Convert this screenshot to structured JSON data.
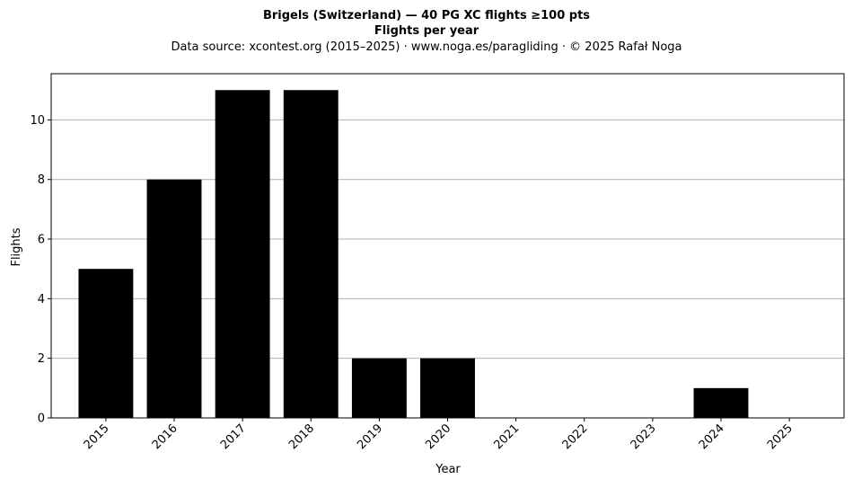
{
  "chart_data": {
    "type": "bar",
    "title": "Brigels (Switzerland)  —  40 PG XC flights ≥100 pts",
    "subtitle": "Flights per year",
    "source": "Data source: xcontest.org (2015–2025)  ·  www.noga.es/paragliding  ·  © 2025 Rafał Noga",
    "xlabel": "Year",
    "ylabel": "Flights",
    "categories": [
      "2015",
      "2016",
      "2017",
      "2018",
      "2019",
      "2020",
      "2021",
      "2022",
      "2023",
      "2024",
      "2025"
    ],
    "values": [
      5,
      8,
      11,
      11,
      2,
      2,
      0,
      0,
      0,
      1,
      0
    ],
    "ylim": [
      0,
      11.55
    ],
    "yticks": [
      0,
      2,
      4,
      6,
      8,
      10
    ],
    "grid": "horizontal",
    "bar_color": "#000000",
    "grid_color": "#b0b0b0",
    "x_tick_rotation": "45 degrees"
  }
}
